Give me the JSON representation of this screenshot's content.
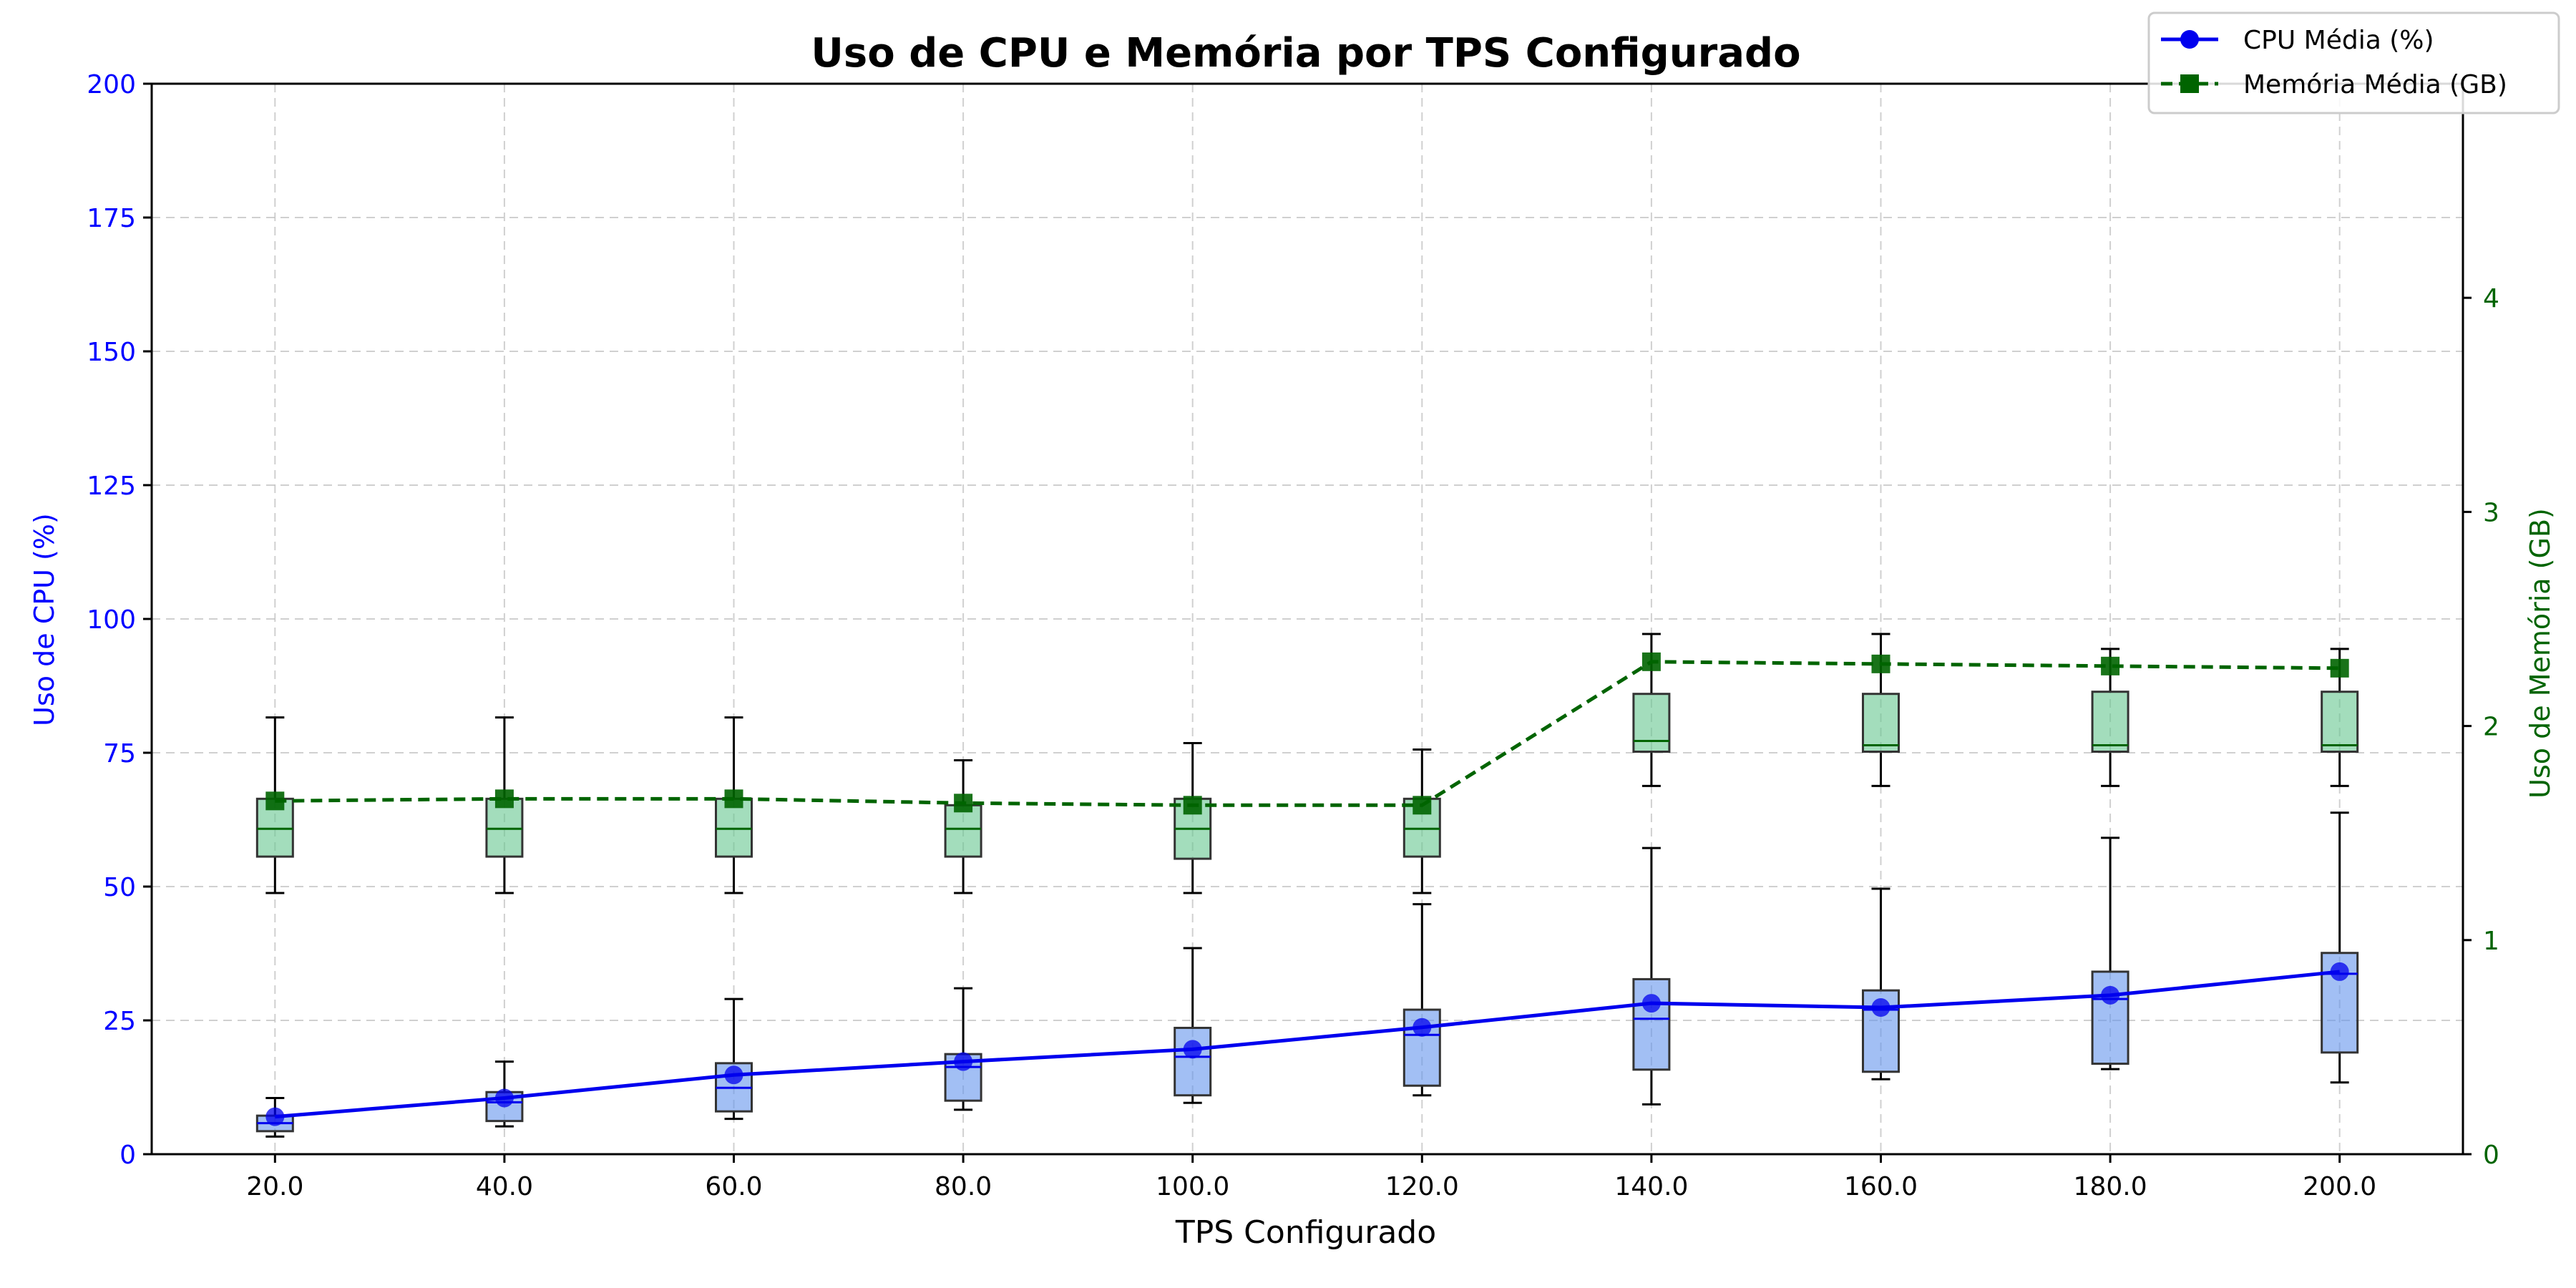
{
  "chart_data": {
    "type": "line",
    "title": "Uso de CPU e Memória por TPS Configurado",
    "xlabel": "TPS Configurado",
    "ylabel_left": "Uso de CPU (%)",
    "ylabel_right": "Uso de Memória (GB)",
    "x": [
      20.0,
      40.0,
      60.0,
      80.0,
      100.0,
      120.0,
      140.0,
      160.0,
      180.0,
      200.0
    ],
    "x_tick_labels": [
      "20.0",
      "40.0",
      "60.0",
      "80.0",
      "100.0",
      "120.0",
      "140.0",
      "160.0",
      "180.0",
      "200.0"
    ],
    "ylim_left": [
      0,
      200
    ],
    "y_ticks_left": [
      "0",
      "25",
      "50",
      "75",
      "100",
      "125",
      "150",
      "175",
      "200"
    ],
    "ylim_right": [
      0,
      5
    ],
    "y_ticks_right": [
      "0",
      "1",
      "2",
      "3",
      "4"
    ],
    "grid": true,
    "legend_position": "top-right",
    "series": [
      {
        "name": "CPU Média (%)",
        "axis": "left",
        "color": "#0000ee",
        "marker": "circle",
        "line_style": "solid",
        "values": [
          7.0,
          10.5,
          14.8,
          17.3,
          19.6,
          23.7,
          28.2,
          27.4,
          29.7,
          34.1
        ],
        "box_color": "#6495ed",
        "boxes": [
          {
            "whisker_low": 3.3,
            "q1": 4.3,
            "median": 5.8,
            "q3": 7.2,
            "whisker_high": 10.5
          },
          {
            "whisker_low": 5.2,
            "q1": 6.2,
            "median": 9.7,
            "q3": 11.6,
            "whisker_high": 17.3
          },
          {
            "whisker_low": 6.6,
            "q1": 8.0,
            "median": 12.4,
            "q3": 17.0,
            "whisker_high": 29.0
          },
          {
            "whisker_low": 8.3,
            "q1": 10.0,
            "median": 16.3,
            "q3": 18.7,
            "whisker_high": 31.0
          },
          {
            "whisker_low": 9.6,
            "q1": 11.0,
            "median": 18.2,
            "q3": 23.6,
            "whisker_high": 38.5
          },
          {
            "whisker_low": 11.0,
            "q1": 12.8,
            "median": 22.3,
            "q3": 27.0,
            "whisker_high": 46.7
          },
          {
            "whisker_low": 9.3,
            "q1": 15.8,
            "median": 25.3,
            "q3": 32.7,
            "whisker_high": 57.2
          },
          {
            "whisker_low": 14.0,
            "q1": 15.4,
            "median": 27.0,
            "q3": 30.6,
            "whisker_high": 49.6
          },
          {
            "whisker_low": 15.9,
            "q1": 16.9,
            "median": 29.0,
            "q3": 34.1,
            "whisker_high": 59.1
          },
          {
            "whisker_low": 13.4,
            "q1": 19.0,
            "median": 33.7,
            "q3": 37.6,
            "whisker_high": 63.8
          }
        ]
      },
      {
        "name": "Memória Média (GB)",
        "axis": "right",
        "color": "#006400",
        "marker": "square",
        "line_style": "dashed",
        "values": [
          1.65,
          1.66,
          1.66,
          1.64,
          1.63,
          1.63,
          2.3,
          2.29,
          2.28,
          2.27
        ],
        "box_color": "#66c78f",
        "boxes": [
          {
            "whisker_low": 1.22,
            "q1": 1.39,
            "median": 1.52,
            "q3": 1.66,
            "whisker_high": 2.04
          },
          {
            "whisker_low": 1.22,
            "q1": 1.39,
            "median": 1.52,
            "q3": 1.66,
            "whisker_high": 2.04
          },
          {
            "whisker_low": 1.22,
            "q1": 1.39,
            "median": 1.52,
            "q3": 1.66,
            "whisker_high": 2.04
          },
          {
            "whisker_low": 1.22,
            "q1": 1.39,
            "median": 1.52,
            "q3": 1.63,
            "whisker_high": 1.84
          },
          {
            "whisker_low": 1.22,
            "q1": 1.38,
            "median": 1.52,
            "q3": 1.66,
            "whisker_high": 1.92
          },
          {
            "whisker_low": 1.22,
            "q1": 1.39,
            "median": 1.52,
            "q3": 1.66,
            "whisker_high": 1.89
          },
          {
            "whisker_low": 1.72,
            "q1": 1.88,
            "median": 1.93,
            "q3": 2.15,
            "whisker_high": 2.43
          },
          {
            "whisker_low": 1.72,
            "q1": 1.88,
            "median": 1.91,
            "q3": 2.15,
            "whisker_high": 2.43
          },
          {
            "whisker_low": 1.72,
            "q1": 1.88,
            "median": 1.91,
            "q3": 2.16,
            "whisker_high": 2.36
          },
          {
            "whisker_low": 1.72,
            "q1": 1.88,
            "median": 1.91,
            "q3": 2.16,
            "whisker_high": 2.36
          }
        ]
      }
    ]
  }
}
